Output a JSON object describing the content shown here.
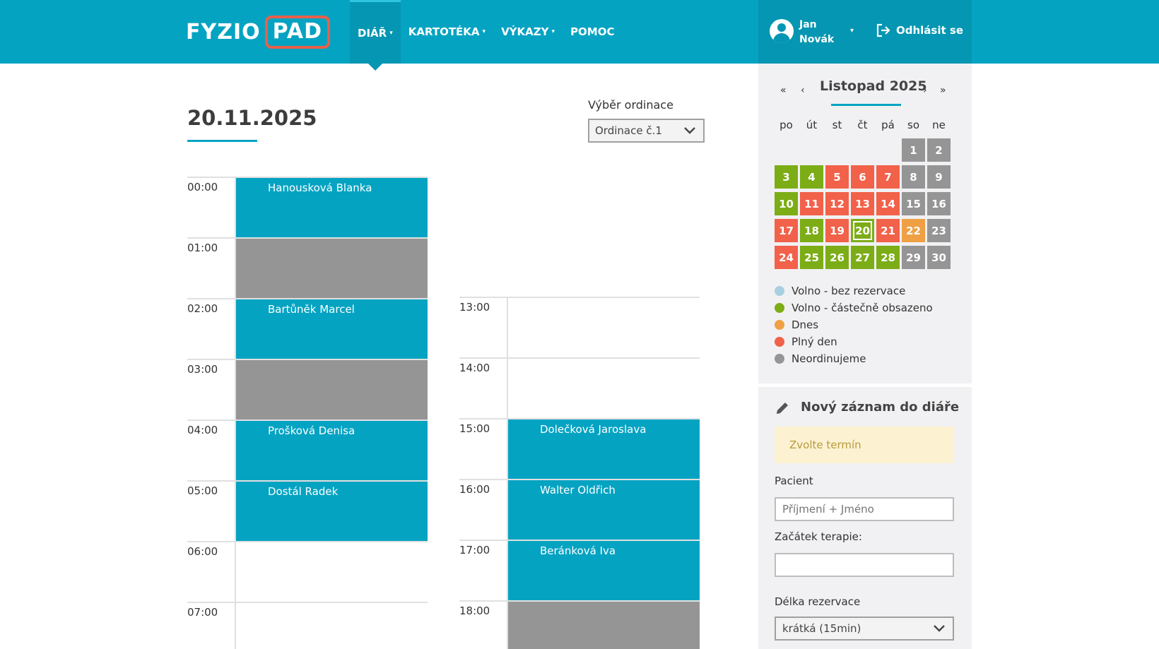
{
  "logo": {
    "part1": "FYZIO",
    "part2": "PAD"
  },
  "nav": [
    {
      "label": "DIÁŘ",
      "caret": "▾"
    },
    {
      "label": "KARTOTÉKA",
      "caret": "▾"
    },
    {
      "label": "VÝKAZY",
      "caret": "▾"
    },
    {
      "label": "POMOC",
      "caret": ""
    }
  ],
  "user": {
    "first": "Jan",
    "last": "Novák",
    "caret": "▾",
    "logout": "Odhlásit se"
  },
  "main": {
    "date": "20.11.2025",
    "office_label": "Výběr ordinace",
    "office_value": "Ordinace č.1"
  },
  "schedule_left": [
    {
      "time": "00:00",
      "status": "booked",
      "patient": "Hanousková Blanka"
    },
    {
      "time": "01:00",
      "status": "closed",
      "patient": ""
    },
    {
      "time": "02:00",
      "status": "booked",
      "patient": "Bartůněk Marcel"
    },
    {
      "time": "03:00",
      "status": "closed",
      "patient": ""
    },
    {
      "time": "04:00",
      "status": "booked",
      "patient": "Prošková Denisa"
    },
    {
      "time": "05:00",
      "status": "booked",
      "patient": "Dostál Radek"
    },
    {
      "time": "06:00",
      "status": "free",
      "patient": ""
    },
    {
      "time": "07:00",
      "status": "free",
      "patient": ""
    }
  ],
  "schedule_right": [
    {
      "time": "13:00",
      "status": "free",
      "patient": ""
    },
    {
      "time": "14:00",
      "status": "free",
      "patient": ""
    },
    {
      "time": "15:00",
      "status": "booked",
      "patient": "Dolečková Jaroslava"
    },
    {
      "time": "16:00",
      "status": "booked",
      "patient": "Walter Oldřich"
    },
    {
      "time": "17:00",
      "status": "booked",
      "patient": "Beránková Iva"
    },
    {
      "time": "18:00",
      "status": "closed",
      "patient": ""
    }
  ],
  "calendar": {
    "title": "Listopad 2025",
    "nav": {
      "prev_year": "«",
      "prev_month": "‹",
      "next_month": "›",
      "next_year": "»"
    },
    "weekdays": [
      "po",
      "út",
      "st",
      "čt",
      "pá",
      "so",
      "ne"
    ],
    "days": [
      {
        "d": "1",
        "s": "grey"
      },
      {
        "d": "2",
        "s": "grey"
      },
      {
        "d": "3",
        "s": "green"
      },
      {
        "d": "4",
        "s": "green"
      },
      {
        "d": "5",
        "s": "red"
      },
      {
        "d": "6",
        "s": "red"
      },
      {
        "d": "7",
        "s": "red"
      },
      {
        "d": "8",
        "s": "grey"
      },
      {
        "d": "9",
        "s": "grey"
      },
      {
        "d": "10",
        "s": "green"
      },
      {
        "d": "11",
        "s": "red"
      },
      {
        "d": "12",
        "s": "red"
      },
      {
        "d": "13",
        "s": "red"
      },
      {
        "d": "14",
        "s": "red"
      },
      {
        "d": "15",
        "s": "grey"
      },
      {
        "d": "16",
        "s": "grey"
      },
      {
        "d": "17",
        "s": "red"
      },
      {
        "d": "18",
        "s": "green"
      },
      {
        "d": "19",
        "s": "red"
      },
      {
        "d": "20",
        "s": "selected"
      },
      {
        "d": "21",
        "s": "red"
      },
      {
        "d": "22",
        "s": "orange"
      },
      {
        "d": "23",
        "s": "grey"
      },
      {
        "d": "24",
        "s": "red"
      },
      {
        "d": "25",
        "s": "green"
      },
      {
        "d": "26",
        "s": "green"
      },
      {
        "d": "27",
        "s": "green"
      },
      {
        "d": "28",
        "s": "green"
      },
      {
        "d": "29",
        "s": "grey"
      },
      {
        "d": "30",
        "s": "grey"
      }
    ],
    "first_weekday_offset": 5
  },
  "legend": [
    {
      "label": "Volno - bez rezervace",
      "color": "#a8cfe0"
    },
    {
      "label": "Volno - částečně obsazeno",
      "color": "#7cad16"
    },
    {
      "label": "Dnes",
      "color": "#f0a044"
    },
    {
      "label": "Plný den",
      "color": "#f2614a"
    },
    {
      "label": "Neordinujeme",
      "color": "#959595"
    }
  ],
  "new_entry": {
    "title": "Nový záznam do diáře",
    "alert": "Zvolte termín",
    "patient_label": "Pacient",
    "patient_placeholder": "Příjmení + Jméno",
    "start_label": "Začátek terapie:",
    "start_value": "",
    "length_label": "Délka rezervace",
    "length_value": "krátká (15min)"
  },
  "colors": {
    "primary": "#05a3c2",
    "primary_dark": "#0496b2",
    "booked": "#05a3c2",
    "closed": "#959595",
    "green": "#7cad16",
    "red": "#f2614a",
    "orange": "#f0a044"
  }
}
